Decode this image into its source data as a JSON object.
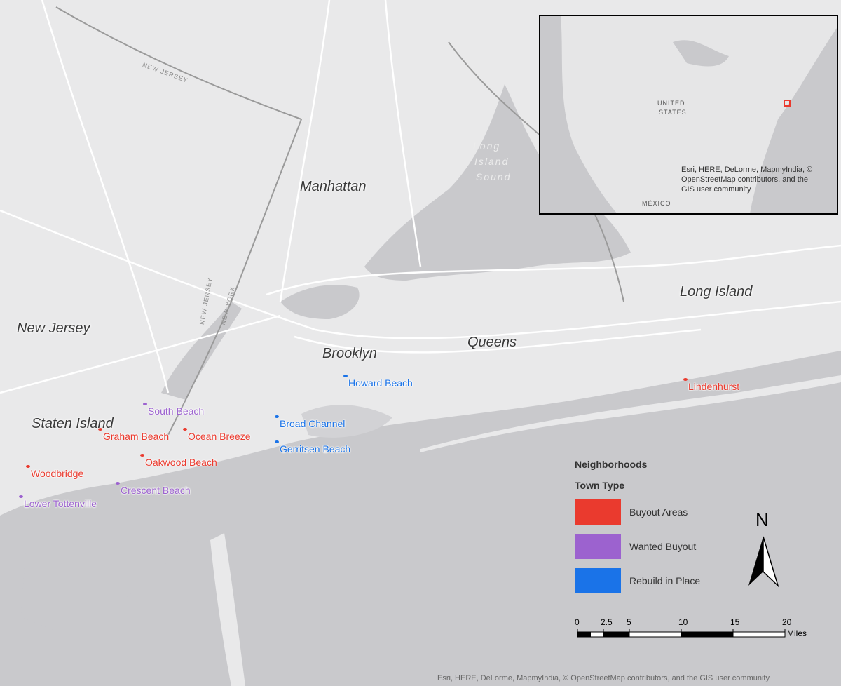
{
  "map": {
    "regions": [
      "Manhattan",
      "New Jersey",
      "Staten Island",
      "Brooklyn",
      "Queens",
      "Long Island"
    ],
    "water_label": [
      "Long",
      "Island",
      "Sound"
    ],
    "road_labels": [
      "NEW JERSEY",
      "NEW JERSEY",
      "NEW YORK"
    ],
    "legend": {
      "title": "Neighborhoods",
      "subtitle": "Town Type",
      "items": [
        {
          "label": "Buyout Areas",
          "color": "#ea3a2e",
          "neighborhoods": [
            "Woodbridge",
            "Graham Beach",
            "Ocean Breeze",
            "Oakwood Beach",
            "Lindenhurst"
          ]
        },
        {
          "label": "Wanted Buyout",
          "color": "#9c62cf",
          "neighborhoods": [
            "South Beach",
            "Crescent Beach",
            "Lower Tottenville"
          ]
        },
        {
          "label": "Rebuild in Place",
          "color": "#1a73e8",
          "neighborhoods": [
            "Howard Beach",
            "Broad Channel",
            "Gerritsen Beach"
          ]
        }
      ]
    },
    "north": "N",
    "scale": {
      "ticks": [
        0,
        2.5,
        5,
        10,
        15,
        20
      ],
      "unit": "Miles"
    },
    "inset": {
      "country_label": [
        "UNITED",
        "STATES"
      ],
      "mexico_label": "MÉXICO",
      "attribution": "Esri, HERE, DeLorme, MapmyIndia, © OpenStreetMap contributors, and the GIS user community"
    },
    "attribution": "Esri, HERE, DeLorme, MapmyIndia, © OpenStreetMap contributors, and the GIS user community"
  }
}
